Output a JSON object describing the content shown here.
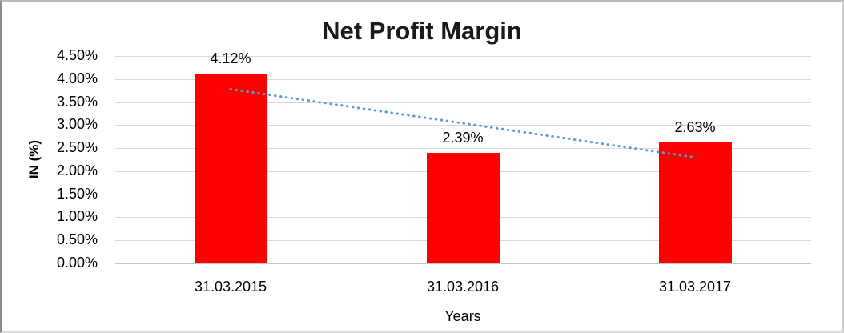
{
  "chart_data": {
    "type": "bar",
    "title": "Net Profit Margin",
    "xlabel": "Years",
    "ylabel": "IN (%)",
    "categories": [
      "31.03.2015",
      "31.03.2016",
      "31.03.2017"
    ],
    "values": [
      4.12,
      2.39,
      2.63
    ],
    "data_labels": [
      "4.12%",
      "2.39%",
      "2.63%"
    ],
    "ylim": [
      0,
      4.5
    ],
    "ytick_step": 0.5,
    "yticks": [
      {
        "value": 0.0,
        "label": "0.00%"
      },
      {
        "value": 0.5,
        "label": "0.50%"
      },
      {
        "value": 1.0,
        "label": "1.00%"
      },
      {
        "value": 1.5,
        "label": "1.50%"
      },
      {
        "value": 2.0,
        "label": "2.00%"
      },
      {
        "value": 2.5,
        "label": "2.50%"
      },
      {
        "value": 3.0,
        "label": "3.00%"
      },
      {
        "value": 3.5,
        "label": "3.50%"
      },
      {
        "value": 4.0,
        "label": "4.00%"
      },
      {
        "value": 4.5,
        "label": "4.50%"
      }
    ],
    "grid": true,
    "legend_position": "none",
    "colors": {
      "bar": "#FF0000",
      "trendline": "#5B9BD5",
      "gridline": "#D9D9D9",
      "text": "#000000",
      "title": "#1A1A1A"
    },
    "trendline": {
      "type": "linear",
      "line_style": "dotted",
      "start_value": 3.78,
      "end_value": 2.3
    }
  }
}
